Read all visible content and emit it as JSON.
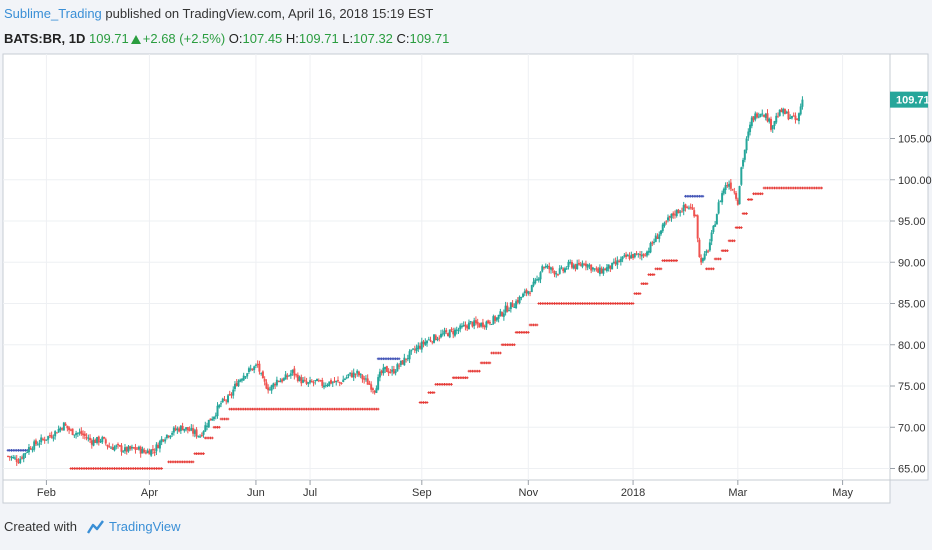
{
  "header": {
    "author": "Sublime_Trading",
    "published": "published on TradingView.com, April 16, 2018 15:19 EST"
  },
  "quote": {
    "symbol": "BATS:BR, 1D",
    "last": "109.71",
    "change": "+2.68 (+2.5%)",
    "open_label": "O:",
    "open": "107.45",
    "high_label": "H:",
    "high": "109.71",
    "low_label": "L:",
    "low": "107.32",
    "close_label": "C:",
    "close": "109.71"
  },
  "footer": {
    "created_with": "Created with",
    "brand": "TradingView",
    "logo_icon": "tradingview-logo-icon"
  },
  "colors": {
    "up": "#26a69a",
    "down": "#ef5350",
    "stop_up": "#e53935",
    "stop_down": "#3f51b5",
    "price_tag": "#26a69a"
  },
  "chart_data": {
    "type": "candlestick",
    "title": "",
    "ylim": [
      64,
      113
    ],
    "yticks": [
      65,
      70,
      75,
      80,
      85,
      90,
      95,
      100,
      105
    ],
    "xticks": [
      {
        "label": "Feb",
        "x": 22
      },
      {
        "label": "Apr",
        "x": 81
      },
      {
        "label": "Jun",
        "x": 142
      },
      {
        "label": "Jul",
        "x": 173
      },
      {
        "label": "Sep",
        "x": 237
      },
      {
        "label": "Nov",
        "x": 298
      },
      {
        "label": "2018",
        "x": 358
      },
      {
        "label": "Mar",
        "x": 418
      },
      {
        "label": "May",
        "x": 478
      }
    ],
    "last_price": 109.71,
    "last_price_label": "109.71",
    "close_points": [
      [
        0,
        66.5
      ],
      [
        6,
        66.0
      ],
      [
        12,
        67.5
      ],
      [
        20,
        68.5
      ],
      [
        26,
        69.2
      ],
      [
        32,
        70.3
      ],
      [
        36,
        69.5
      ],
      [
        42,
        69.2
      ],
      [
        48,
        68.3
      ],
      [
        54,
        68.5
      ],
      [
        58,
        67.6
      ],
      [
        62,
        67.6
      ],
      [
        67,
        67.2
      ],
      [
        70,
        67.3
      ],
      [
        74,
        67.4
      ],
      [
        78,
        67.0
      ],
      [
        84,
        67.3
      ],
      [
        89,
        68.8
      ],
      [
        95,
        69.6
      ],
      [
        100,
        70.0
      ],
      [
        105,
        69.5
      ],
      [
        110,
        69.0
      ],
      [
        114,
        70.5
      ],
      [
        118,
        71.5
      ],
      [
        122,
        72.9
      ],
      [
        127,
        73.6
      ],
      [
        131,
        75.4
      ],
      [
        135,
        76.4
      ],
      [
        139,
        77.0
      ],
      [
        143,
        77.5
      ],
      [
        146,
        75.5
      ],
      [
        150,
        74.6
      ],
      [
        154,
        75.7
      ],
      [
        158,
        75.8
      ],
      [
        163,
        76.7
      ],
      [
        167,
        75.8
      ],
      [
        171,
        75.2
      ],
      [
        176,
        75.5
      ],
      [
        180,
        75.2
      ],
      [
        185,
        75.5
      ],
      [
        190,
        75.4
      ],
      [
        195,
        76.3
      ],
      [
        200,
        76.5
      ],
      [
        205,
        75.6
      ],
      [
        210,
        74.6
      ],
      [
        213,
        76.3
      ],
      [
        216,
        77.0
      ],
      [
        220,
        76.7
      ],
      [
        225,
        77.7
      ],
      [
        230,
        78.8
      ],
      [
        235,
        79.7
      ],
      [
        240,
        80.5
      ],
      [
        245,
        80.9
      ],
      [
        250,
        81.3
      ],
      [
        255,
        81.6
      ],
      [
        260,
        82.0
      ],
      [
        265,
        82.6
      ],
      [
        270,
        82.4
      ],
      [
        275,
        82.8
      ],
      [
        280,
        83.2
      ],
      [
        285,
        84.3
      ],
      [
        290,
        85.0
      ],
      [
        295,
        86.0
      ],
      [
        300,
        86.9
      ],
      [
        303,
        87.8
      ],
      [
        306,
        89.6
      ],
      [
        310,
        89.2
      ],
      [
        314,
        88.8
      ],
      [
        318,
        89.0
      ],
      [
        322,
        89.8
      ],
      [
        326,
        89.4
      ],
      [
        330,
        90.0
      ],
      [
        334,
        89.4
      ],
      [
        338,
        88.8
      ],
      [
        342,
        89.2
      ],
      [
        346,
        89.5
      ],
      [
        350,
        90.1
      ],
      [
        354,
        90.6
      ],
      [
        358,
        90.8
      ],
      [
        362,
        90.8
      ],
      [
        366,
        91.3
      ],
      [
        370,
        92.6
      ],
      [
        374,
        93.8
      ],
      [
        378,
        95.1
      ],
      [
        382,
        96.0
      ],
      [
        386,
        96.5
      ],
      [
        390,
        96.7
      ],
      [
        394,
        95.8
      ],
      [
        396,
        90.5
      ],
      [
        398,
        90.2
      ],
      [
        401,
        91.6
      ],
      [
        404,
        94.0
      ],
      [
        407,
        97.0
      ],
      [
        410,
        99.0
      ],
      [
        413,
        99.6
      ],
      [
        416,
        98.6
      ],
      [
        418,
        97.4
      ],
      [
        420,
        101.5
      ],
      [
        423,
        104.7
      ],
      [
        426,
        107.3
      ],
      [
        429,
        108.0
      ],
      [
        432,
        108.3
      ],
      [
        435,
        107.5
      ],
      [
        437,
        106.5
      ],
      [
        440,
        107.6
      ],
      [
        443,
        108.3
      ],
      [
        446,
        107.9
      ],
      [
        449,
        107.5
      ],
      [
        452,
        107.1
      ],
      [
        455,
        109.71
      ]
    ],
    "stop_segments": [
      {
        "trend": "down",
        "x0": 0,
        "x1": 11,
        "y": 67.2
      },
      {
        "trend": "up",
        "x0": 36,
        "x1": 88,
        "y": 65.0
      },
      {
        "trend": "up",
        "x0": 92,
        "x1": 106,
        "y": 65.8
      },
      {
        "trend": "up",
        "x0": 107,
        "x1": 112,
        "y": 66.8
      },
      {
        "trend": "up",
        "x0": 113,
        "x1": 117,
        "y": 68.7
      },
      {
        "trend": "up",
        "x0": 118,
        "x1": 121,
        "y": 70.0
      },
      {
        "trend": "up",
        "x0": 122,
        "x1": 126,
        "y": 71.0
      },
      {
        "trend": "up",
        "x0": 127,
        "x1": 212,
        "y": 72.2
      },
      {
        "trend": "down",
        "x0": 212,
        "x1": 224,
        "y": 78.3
      },
      {
        "trend": "up",
        "x0": 236,
        "x1": 240,
        "y": 73.0
      },
      {
        "trend": "up",
        "x0": 241,
        "x1": 244,
        "y": 74.2
      },
      {
        "trend": "up",
        "x0": 245,
        "x1": 254,
        "y": 75.2
      },
      {
        "trend": "up",
        "x0": 255,
        "x1": 263,
        "y": 76.0
      },
      {
        "trend": "up",
        "x0": 264,
        "x1": 270,
        "y": 76.8
      },
      {
        "trend": "up",
        "x0": 271,
        "x1": 276,
        "y": 77.8
      },
      {
        "trend": "up",
        "x0": 277,
        "x1": 282,
        "y": 79.0
      },
      {
        "trend": "up",
        "x0": 283,
        "x1": 290,
        "y": 80.0
      },
      {
        "trend": "up",
        "x0": 291,
        "x1": 298,
        "y": 81.5
      },
      {
        "trend": "up",
        "x0": 299,
        "x1": 303,
        "y": 82.4
      },
      {
        "trend": "up",
        "x0": 304,
        "x1": 358,
        "y": 85.0
      },
      {
        "trend": "up",
        "x0": 359,
        "x1": 362,
        "y": 86.2
      },
      {
        "trend": "up",
        "x0": 363,
        "x1": 366,
        "y": 87.4
      },
      {
        "trend": "up",
        "x0": 367,
        "x1": 370,
        "y": 88.5
      },
      {
        "trend": "up",
        "x0": 371,
        "x1": 374,
        "y": 89.2
      },
      {
        "trend": "up",
        "x0": 375,
        "x1": 383,
        "y": 90.2
      },
      {
        "trend": "down",
        "x0": 388,
        "x1": 398,
        "y": 98.0
      },
      {
        "trend": "up",
        "x0": 400,
        "x1": 404,
        "y": 89.2
      },
      {
        "trend": "up",
        "x0": 405,
        "x1": 408,
        "y": 90.4
      },
      {
        "trend": "up",
        "x0": 409,
        "x1": 412,
        "y": 91.4
      },
      {
        "trend": "up",
        "x0": 413,
        "x1": 416,
        "y": 92.6
      },
      {
        "trend": "up",
        "x0": 417,
        "x1": 420,
        "y": 94.2
      },
      {
        "trend": "up",
        "x0": 421,
        "x1": 423,
        "y": 95.9
      },
      {
        "trend": "up",
        "x0": 424,
        "x1": 426,
        "y": 97.6
      },
      {
        "trend": "up",
        "x0": 427,
        "x1": 432,
        "y": 98.3
      },
      {
        "trend": "up",
        "x0": 433,
        "x1": 466,
        "y": 99.0
      }
    ]
  }
}
